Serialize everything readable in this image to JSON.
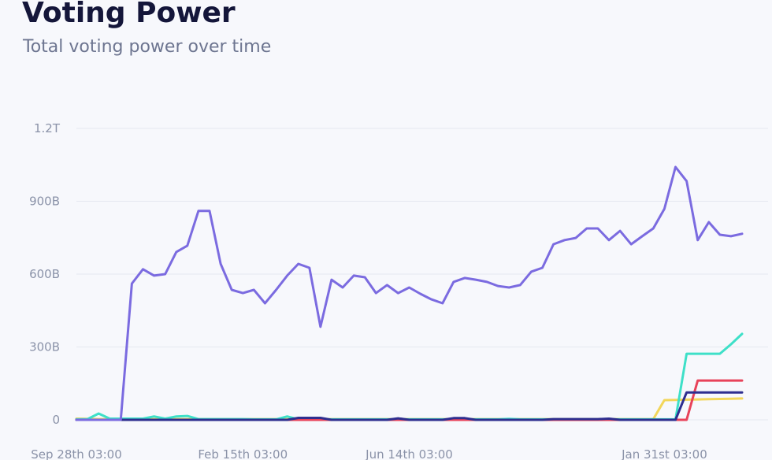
{
  "chart_data": {
    "type": "line",
    "title": "Voting Power",
    "subtitle": "Total voting power over time",
    "categories": [
      "Sep 28th 03:00",
      null,
      null,
      null,
      null,
      null,
      null,
      null,
      null,
      null,
      null,
      null,
      null,
      null,
      null,
      "Feb 15th 03:00",
      null,
      null,
      null,
      null,
      null,
      null,
      null,
      null,
      null,
      null,
      null,
      null,
      null,
      null,
      "Jun 14th 03:00",
      null,
      null,
      null,
      null,
      null,
      null,
      null,
      null,
      null,
      null,
      null,
      null,
      null,
      null,
      null,
      null,
      null,
      null,
      null,
      null,
      null,
      null,
      "Jan 31st 03:00",
      null,
      null,
      null,
      null,
      null,
      null,
      null
    ],
    "series": [
      {
        "color": "#f2d65a",
        "values": [
          5,
          4,
          3,
          3,
          3,
          3,
          3,
          3,
          3,
          3,
          3,
          3,
          3,
          3,
          3,
          3,
          3,
          3,
          3,
          3,
          3,
          3,
          3,
          3,
          3,
          3,
          3,
          3,
          3,
          3,
          3,
          3,
          3,
          3,
          3,
          3,
          3,
          3,
          3,
          3,
          3,
          3,
          3,
          3,
          3,
          3,
          3,
          3,
          3,
          3,
          3,
          3,
          3,
          81,
          82,
          83,
          84,
          85,
          86,
          87,
          88
        ]
      },
      {
        "color": "#3ee0c8",
        "values": [
          2,
          3,
          26,
          5,
          5,
          5,
          5,
          14,
          5,
          14,
          16,
          3,
          3,
          3,
          3,
          3,
          2,
          2,
          2,
          14,
          2,
          2,
          2,
          2,
          2,
          2,
          2,
          2,
          2,
          2,
          2,
          2,
          2,
          2,
          2,
          2,
          2,
          2,
          2,
          4,
          2,
          2,
          2,
          2,
          2,
          2,
          2,
          2,
          2,
          2,
          2,
          2,
          2,
          2,
          2,
          272,
          272,
          272,
          272,
          311,
          354
        ]
      },
      {
        "color": "#e8435a",
        "values": [
          0,
          0,
          0,
          0,
          0,
          0,
          0,
          0,
          0,
          0,
          0,
          0,
          0,
          0,
          0,
          0,
          0,
          0,
          0,
          0,
          0,
          0,
          0,
          0,
          0,
          0,
          0,
          0,
          0,
          0,
          0,
          0,
          0,
          0,
          0,
          0,
          0,
          0,
          0,
          0,
          0,
          0,
          0,
          0,
          0,
          0,
          0,
          0,
          0,
          0,
          0,
          0,
          0,
          0,
          0,
          0,
          162,
          162,
          162,
          162,
          162
        ]
      },
      {
        "color": "#2e2e8f",
        "values": [
          0,
          0,
          0,
          0,
          0,
          0,
          0,
          0,
          0,
          0,
          0,
          0,
          0,
          0,
          0,
          0,
          0,
          0,
          0,
          0,
          8,
          8,
          8,
          0,
          0,
          0,
          0,
          0,
          0,
          6,
          0,
          0,
          0,
          0,
          7,
          7,
          0,
          0,
          0,
          0,
          0,
          0,
          0,
          3,
          3,
          3,
          3,
          3,
          5,
          0,
          0,
          0,
          0,
          0,
          0,
          113,
          113,
          113,
          113,
          113,
          113
        ]
      },
      {
        "color": "#7b6be0",
        "values": [
          0,
          0,
          0,
          0,
          0,
          561,
          620,
          594,
          600,
          691,
          717,
          860,
          860,
          642,
          535,
          522,
          535,
          480,
          535,
          594,
          642,
          626,
          383,
          577,
          545,
          594,
          587,
          522,
          555,
          522,
          545,
          519,
          496,
          480,
          568,
          584,
          577,
          568,
          551,
          545,
          555,
          610,
          626,
          723,
          740,
          749,
          788,
          788,
          740,
          778,
          723,
          756,
          788,
          869,
          1041,
          983,
          740,
          814,
          762,
          756,
          766
        ]
      }
    ],
    "ylim": [
      0,
      1200
    ],
    "yticks": [
      0,
      {
        "value": 300,
        "label": "300B"
      },
      {
        "value": 600,
        "label": "600B"
      },
      {
        "value": 900,
        "label": "900B"
      },
      {
        "value": 1200,
        "label": "1.2T"
      }
    ],
    "grid": true
  }
}
